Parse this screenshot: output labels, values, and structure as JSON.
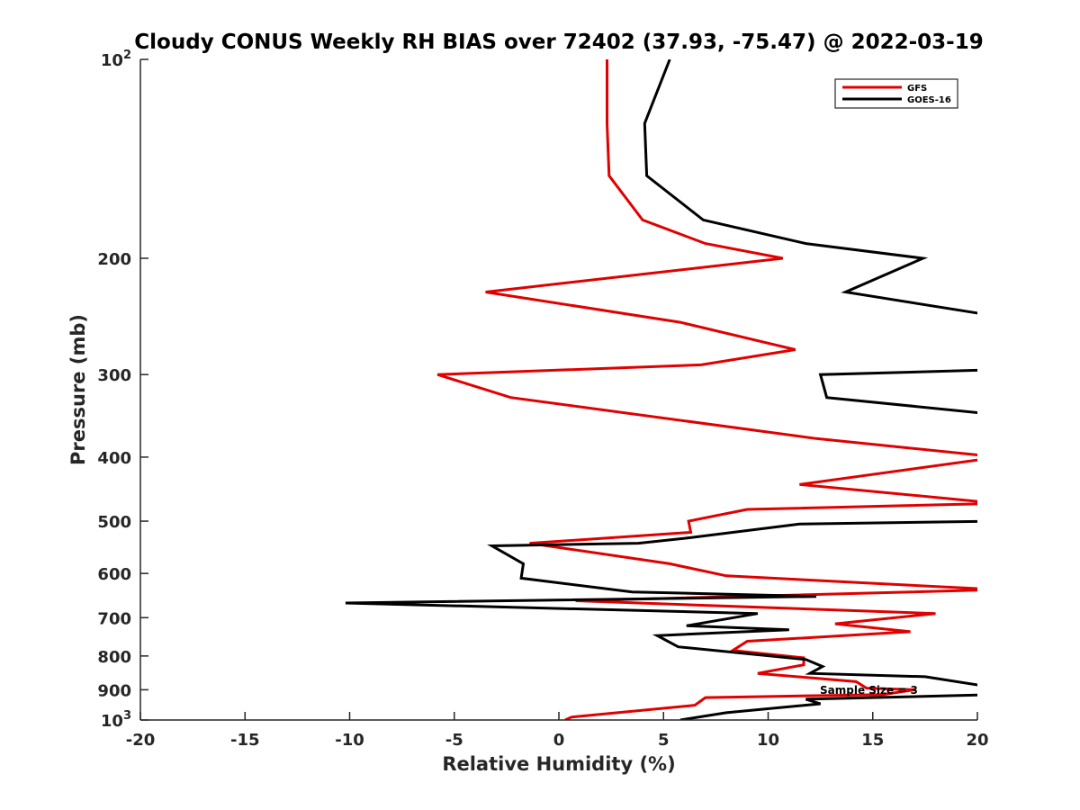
{
  "chart_data": {
    "type": "line",
    "title": "Cloudy CONUS Weekly RH BIAS over 72402 (37.93, -75.47) @ 2022-03-19",
    "xlabel": "Relative Humidity (%)",
    "ylabel": "Pressure (mb)",
    "xlim": [
      -20,
      20
    ],
    "ylim": [
      100,
      1000
    ],
    "yscale": "log",
    "y_reversed": true,
    "grid": false,
    "legend_position": "top-right",
    "x_ticks": [
      "-20",
      "-15",
      "-10",
      "-5",
      "0",
      "5",
      "10",
      "15",
      "20"
    ],
    "y_ticks": [
      {
        "value": 100,
        "base": "10",
        "exp": "2"
      },
      {
        "value": 200,
        "label": "200"
      },
      {
        "value": 300,
        "label": "300"
      },
      {
        "value": 400,
        "label": "400"
      },
      {
        "value": 500,
        "label": "500"
      },
      {
        "value": 600,
        "label": "600"
      },
      {
        "value": 700,
        "label": "700"
      },
      {
        "value": 800,
        "label": "800"
      },
      {
        "value": 900,
        "label": "900"
      },
      {
        "value": 1000,
        "base": "10",
        "exp": "3"
      }
    ],
    "annotation": "Sample Size = 3",
    "series": [
      {
        "name": "GFS",
        "color": "#e00000",
        "points": [
          [
            2.3,
            100
          ],
          [
            2.3,
            125
          ],
          [
            2.4,
            150
          ],
          [
            4.0,
            175
          ],
          [
            7.0,
            190
          ],
          [
            10.7,
            200
          ],
          [
            -3.5,
            225
          ],
          [
            5.8,
            250
          ],
          [
            11.3,
            275
          ],
          [
            6.8,
            290
          ],
          [
            -5.8,
            300
          ],
          [
            -2.3,
            325
          ],
          [
            12.3,
            375
          ],
          [
            21.0,
            400
          ],
          [
            11.5,
            440
          ],
          [
            21.0,
            470
          ],
          [
            9.0,
            480
          ],
          [
            6.2,
            500
          ],
          [
            6.3,
            520
          ],
          [
            -1.4,
            540
          ],
          [
            5.3,
            580
          ],
          [
            8.0,
            605
          ],
          [
            21.0,
            635
          ],
          [
            0.8,
            660
          ],
          [
            18.0,
            690
          ],
          [
            13.2,
            715
          ],
          [
            16.8,
            735
          ],
          [
            9.0,
            760
          ],
          [
            8.3,
            785
          ],
          [
            11.7,
            805
          ],
          [
            11.7,
            825
          ],
          [
            9.5,
            850
          ],
          [
            14.2,
            875
          ],
          [
            14.7,
            895
          ],
          [
            17.0,
            900
          ],
          [
            15.5,
            915
          ],
          [
            7.0,
            925
          ],
          [
            6.5,
            950
          ],
          [
            0.6,
            990
          ],
          [
            0.3,
            1000
          ]
        ]
      },
      {
        "name": "GOES-16",
        "color": "#000000",
        "points": [
          [
            5.3,
            100
          ],
          [
            4.1,
            125
          ],
          [
            4.2,
            150
          ],
          [
            6.9,
            175
          ],
          [
            11.8,
            190
          ],
          [
            17.4,
            200
          ],
          [
            13.7,
            225
          ],
          [
            21.0,
            245
          ],
          [
            21.0,
            295
          ],
          [
            12.5,
            300
          ],
          [
            12.8,
            325
          ],
          [
            21.0,
            345
          ],
          [
            21.0,
            500
          ],
          [
            11.5,
            505
          ],
          [
            6.2,
            530
          ],
          [
            3.8,
            540
          ],
          [
            -3.2,
            545
          ],
          [
            -1.7,
            580
          ],
          [
            -1.8,
            610
          ],
          [
            3.5,
            640
          ],
          [
            12.3,
            650
          ],
          [
            -10.2,
            665
          ],
          [
            9.5,
            690
          ],
          [
            6.1,
            720
          ],
          [
            11.0,
            730
          ],
          [
            4.7,
            745
          ],
          [
            5.7,
            775
          ],
          [
            11.8,
            810
          ],
          [
            12.6,
            830
          ],
          [
            12.0,
            850
          ],
          [
            17.5,
            860
          ],
          [
            21.0,
            895
          ],
          [
            21.0,
            915
          ],
          [
            11.8,
            930
          ],
          [
            12.5,
            945
          ],
          [
            8.0,
            975
          ],
          [
            5.8,
            1000
          ]
        ]
      }
    ]
  }
}
